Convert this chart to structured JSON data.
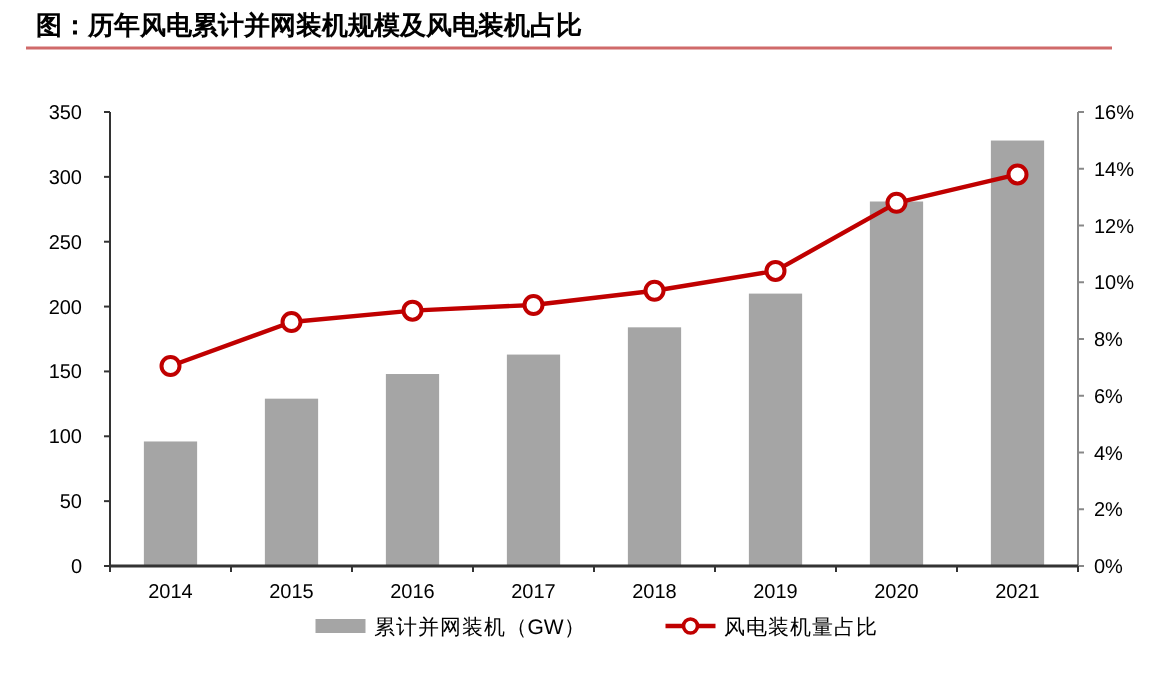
{
  "chart_data": {
    "type": "bar",
    "title": "图：历年风电累计并网装机规模及风电装机占比",
    "categories": [
      "2014",
      "2015",
      "2016",
      "2017",
      "2018",
      "2019",
      "2020",
      "2021"
    ],
    "series": [
      {
        "name": "累计并网装机（GW）",
        "color": "#a5a5a5",
        "values": [
          96,
          129,
          148,
          163,
          184,
          210,
          281,
          328
        ]
      },
      {
        "name": "风电装机量占比",
        "type": "line",
        "axis": "y2",
        "color": "#c00000",
        "marker": "circle",
        "values": [
          7.05,
          8.6,
          9.0,
          9.2,
          9.7,
          10.4,
          12.8,
          13.8
        ]
      }
    ],
    "ylim": [
      0,
      350
    ],
    "yticks": [
      0,
      50,
      100,
      150,
      200,
      250,
      300,
      350
    ],
    "y2lim": [
      0,
      16
    ],
    "y2ticks": [
      {
        "value": 0,
        "label": "0%"
      },
      {
        "value": 2,
        "label": "2%"
      },
      {
        "value": 4,
        "label": "4%"
      },
      {
        "value": 6,
        "label": "6%"
      },
      {
        "value": 8,
        "label": "8%"
      },
      {
        "value": 10,
        "label": "10%"
      },
      {
        "value": 12,
        "label": "12%"
      },
      {
        "value": 14,
        "label": "14%"
      },
      {
        "value": 16,
        "label": "16%"
      }
    ],
    "grid": false,
    "legend": "bottom"
  }
}
